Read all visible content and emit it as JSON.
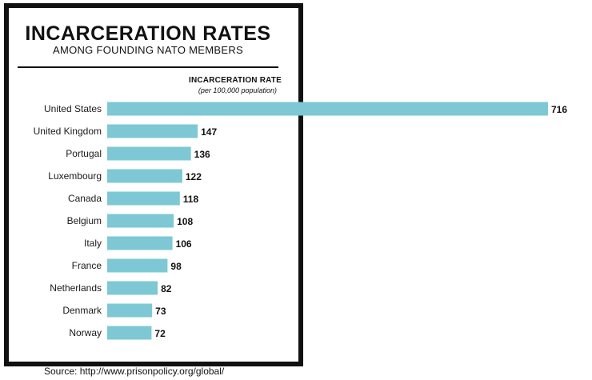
{
  "header": {
    "title": "INCARCERATION RATES",
    "subtitle": "AMONG FOUNDING NATO MEMBERS",
    "axis_title": "INCARCERATION RATE",
    "axis_subtitle": "(per 100,000 population)"
  },
  "footer": {
    "source": "Source: http://www.prisonpolicy.org/global/"
  },
  "colors": {
    "bar": "#7ec8d5",
    "frame": "#111111"
  },
  "chart_data": {
    "type": "bar",
    "orientation": "horizontal",
    "title": "INCARCERATION RATES",
    "subtitle": "AMONG FOUNDING NATO MEMBERS",
    "xlabel": "INCARCERATION RATE (per 100,000 population)",
    "ylabel": "",
    "xlim": [
      0,
      716
    ],
    "grid": false,
    "categories": [
      "United States",
      "United Kingdom",
      "Portugal",
      "Luxembourg",
      "Canada",
      "Belgium",
      "Italy",
      "France",
      "Netherlands",
      "Denmark",
      "Norway"
    ],
    "values": [
      716,
      147,
      136,
      122,
      118,
      108,
      106,
      98,
      82,
      73,
      72
    ]
  }
}
